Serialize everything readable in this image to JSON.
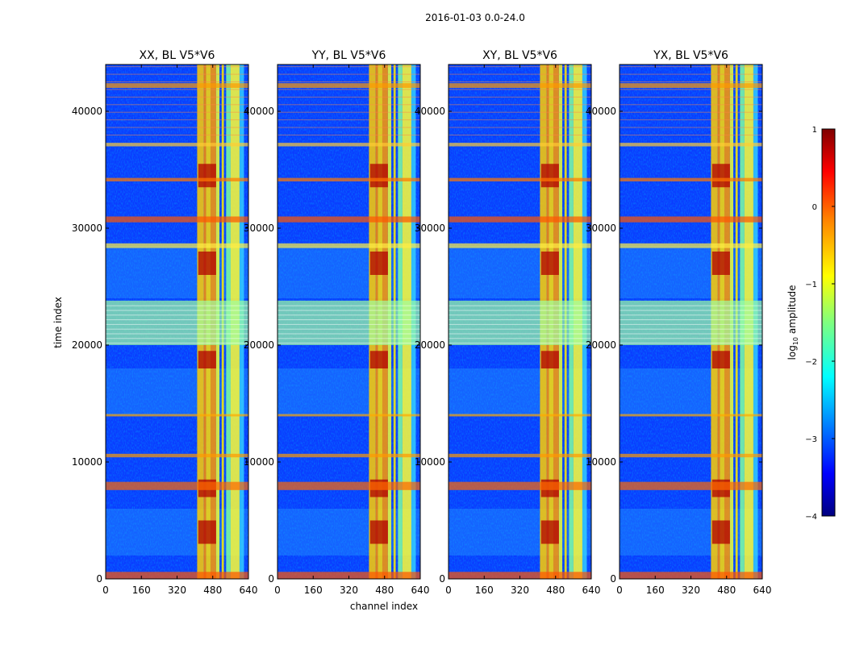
{
  "figure": {
    "suptitle": "2016-01-03 0.0-24.0",
    "xlabel": "channel index",
    "ylabel": "time index"
  },
  "chart_data": [
    {
      "type": "heatmap",
      "title": "XX, BL V5*V6",
      "xlim": [
        0,
        640
      ],
      "ylim": [
        0,
        44000
      ],
      "xticks": [
        0,
        160,
        320,
        480,
        640
      ],
      "yticks": [
        0,
        10000,
        20000,
        30000,
        40000
      ],
      "ytick_labels_visible": true
    },
    {
      "type": "heatmap",
      "title": "YY, BL V5*V6",
      "xlim": [
        0,
        640
      ],
      "ylim": [
        0,
        44000
      ],
      "xticks": [
        0,
        160,
        320,
        480,
        640
      ],
      "yticks": [
        0,
        10000,
        20000,
        30000,
        40000
      ],
      "ytick_labels_visible": true
    },
    {
      "type": "heatmap",
      "title": "XY, BL V5*V6",
      "xlim": [
        0,
        640
      ],
      "ylim": [
        0,
        44000
      ],
      "xticks": [
        0,
        160,
        320,
        480,
        640
      ],
      "yticks": [
        0,
        10000,
        20000,
        30000,
        40000
      ],
      "ytick_labels_visible": true
    },
    {
      "type": "heatmap",
      "title": "YX, BL V5*V6",
      "xlim": [
        0,
        640
      ],
      "ylim": [
        0,
        44000
      ],
      "xticks": [
        0,
        160,
        320,
        480,
        640
      ],
      "yticks": [
        0,
        10000,
        20000,
        30000,
        40000
      ],
      "ytick_labels_visible": true
    }
  ],
  "colorbar": {
    "label_prefix": "log",
    "label_sub": "10",
    "label_suffix": " amplitude",
    "range": [
      -4,
      1
    ],
    "ticks": [
      1,
      0,
      -1,
      -2,
      -3,
      -4
    ],
    "tick_labels": [
      "1",
      "0",
      "−1",
      "−2",
      "−3",
      "−4"
    ],
    "colormap": [
      "#00007f",
      "#0000ff",
      "#007fff",
      "#00ffff",
      "#7fff7f",
      "#ffff00",
      "#ff7f00",
      "#ff0000",
      "#7f0000"
    ]
  },
  "colors": {
    "background": "#00007f"
  }
}
